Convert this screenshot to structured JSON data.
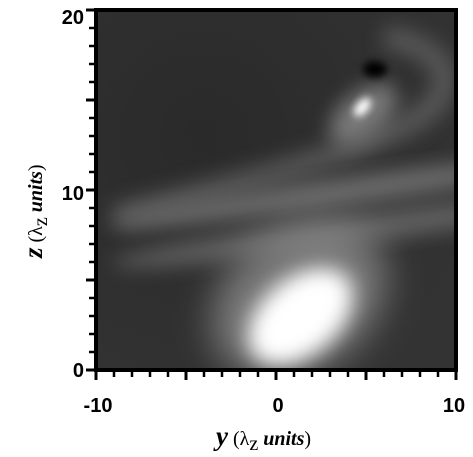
{
  "chart_data": {
    "type": "heatmap",
    "colormap": "grayscale",
    "xlim": [
      -10,
      10
    ],
    "ylim": [
      0,
      20
    ],
    "x_ticks": [
      "-10",
      "0",
      "10"
    ],
    "y_ticks": [
      "0",
      "10",
      "20"
    ],
    "xlabel": {
      "var": "y",
      "open": " (λ",
      "sub": "z",
      "unit": " units",
      "close": ")"
    },
    "ylabel": {
      "var": "z",
      "open": " (λ",
      "sub": "z",
      "unit": " units",
      "close": ")"
    },
    "features": [
      {
        "kind": "bright-lobe",
        "x": 1.5,
        "y": 2.8,
        "level": 1.0
      },
      {
        "kind": "bright-spot",
        "x": 4.8,
        "y": 14.6,
        "level": 1.0
      },
      {
        "kind": "dark-spot",
        "x": 5.5,
        "y": 16.7,
        "level": 0.0
      },
      {
        "kind": "gray-band",
        "x": 3.0,
        "y": 9.8,
        "level": 0.62
      },
      {
        "kind": "gray-band",
        "x": 3.0,
        "y": 7.6,
        "level": 0.55
      }
    ]
  }
}
